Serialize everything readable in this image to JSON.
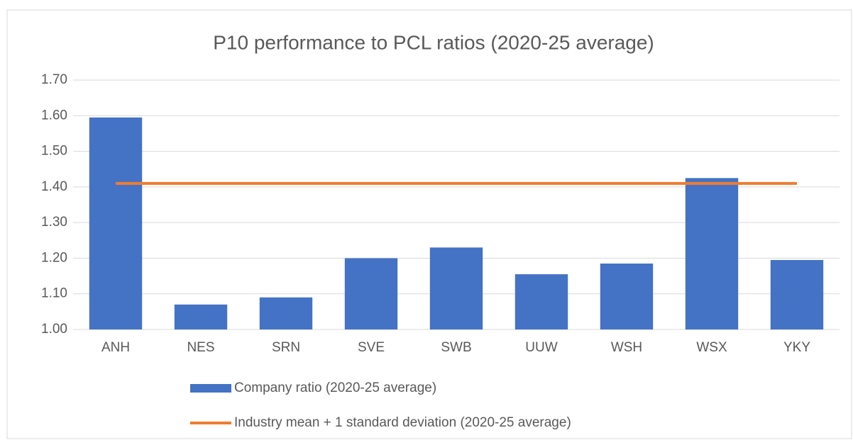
{
  "chart_data": {
    "type": "bar",
    "title": "P10 performance to PCL ratios (2020-25 average)",
    "categories": [
      "ANH",
      "NES",
      "SRN",
      "SVE",
      "SWB",
      "UUW",
      "WSH",
      "WSX",
      "YKY"
    ],
    "series": [
      {
        "name": "Company ratio (2020-25 average)",
        "type": "bar",
        "color": "#4472c4",
        "values": [
          1.595,
          1.07,
          1.09,
          1.2,
          1.23,
          1.155,
          1.185,
          1.425,
          1.195
        ]
      },
      {
        "name": "Industry mean + 1 standard deviation (2020-25 average)",
        "type": "line",
        "color": "#ed7d31",
        "values": [
          1.41,
          1.41,
          1.41,
          1.41,
          1.41,
          1.41,
          1.41,
          1.41,
          1.41
        ]
      }
    ],
    "ylim": [
      1.0,
      1.7
    ],
    "yticks": [
      {
        "value": 1.0,
        "label": "1.00"
      },
      {
        "value": 1.1,
        "label": "1.10"
      },
      {
        "value": 1.2,
        "label": "1.20"
      },
      {
        "value": 1.3,
        "label": "1.30"
      },
      {
        "value": 1.4,
        "label": "1.40"
      },
      {
        "value": 1.5,
        "label": "1.50"
      },
      {
        "value": 1.6,
        "label": "1.60"
      },
      {
        "value": 1.7,
        "label": "1.70"
      }
    ],
    "grid": true,
    "legend": "bottom"
  }
}
